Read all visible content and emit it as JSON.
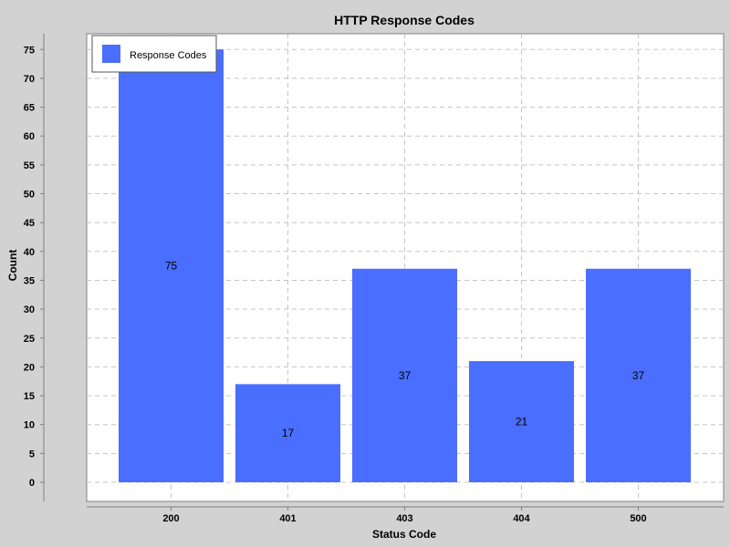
{
  "chart_data": {
    "type": "bar",
    "title": "HTTP Response Codes",
    "xlabel": "Status Code",
    "ylabel": "Count",
    "categories": [
      "200",
      "401",
      "403",
      "404",
      "500"
    ],
    "series": [
      {
        "name": "Response Codes",
        "values": [
          75,
          17,
          37,
          21,
          37
        ]
      }
    ],
    "ylim": [
      0,
      78
    ],
    "yticks": [
      0,
      5,
      10,
      15,
      20,
      25,
      30,
      35,
      40,
      45,
      50,
      55,
      60,
      65,
      70,
      75
    ],
    "grid": true,
    "legend_position": "top-left",
    "colors": {
      "bar": "#4a6eff",
      "plot_background": "#ffffff",
      "page_background": "#d2d2d2",
      "grid": "#c4c4c4"
    }
  }
}
